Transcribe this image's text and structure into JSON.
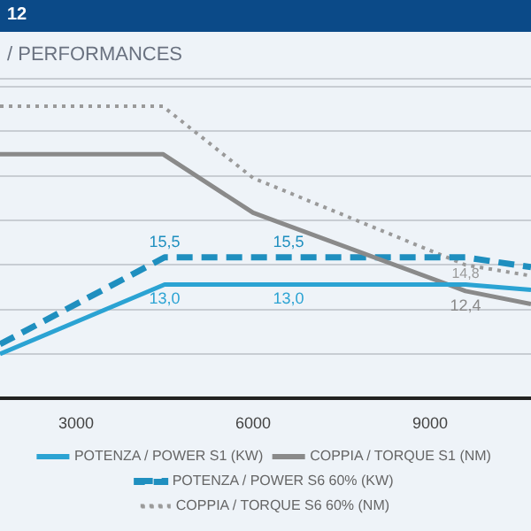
{
  "chart_data": {
    "type": "line",
    "title": "12",
    "subtitle": "/ PERFORMANCES",
    "xlim": [
      1710,
      10710
    ],
    "xticks": [
      3000,
      6000,
      9000
    ],
    "ylim": [
      2.5,
      31.2
    ],
    "yticks": [
      {
        "value": 6.6,
        "label": null
      },
      {
        "value": 10.7,
        "label": null
      },
      {
        "value": 14.8,
        "label": null
      },
      {
        "value": 18.9,
        "label": null
      },
      {
        "value": 23.0,
        "label": null
      },
      {
        "value": 27.1,
        "label": null
      },
      {
        "value": 31.2,
        "label": null
      }
    ],
    "tick_labels": "x",
    "grid": "y",
    "legend": "bottom",
    "marker": "none",
    "series": [
      {
        "name": "POTENZA / POWER S1 (KW)",
        "color": "#2ba3d3",
        "line_style": "solid",
        "x": [
          1710,
          4500,
          6600,
          9600,
          10710
        ],
        "values": [
          6.6,
          13.0,
          13.0,
          13.0,
          12.5
        ],
        "value_labels": [
          null,
          "13,0",
          "13,0",
          null,
          null
        ]
      },
      {
        "name": "COPPIA / TORQUE S1 (NM)",
        "color": "#8a8a8a",
        "line_style": "solid",
        "x": [
          1710,
          4470,
          6000,
          9600,
          10710
        ],
        "values": [
          25.0,
          25.0,
          19.6,
          12.4,
          11.2
        ],
        "value_labels": [
          null,
          null,
          null,
          "12,4",
          null
        ]
      },
      {
        "name": "POTENZA / POWER S6 60% (KW)",
        "color": "#1f8fbf",
        "line_style": "dashed",
        "x": [
          1710,
          4500,
          6600,
          9600,
          10710
        ],
        "values": [
          7.5,
          15.5,
          15.5,
          15.5,
          14.6
        ],
        "value_labels": [
          null,
          "15,5",
          "15,5",
          null,
          null
        ]
      },
      {
        "name": "COPPIA / TORQUE S6 60% (NM)",
        "color": "#9a9a9a",
        "line_style": "dotted",
        "x": [
          1710,
          4470,
          6000,
          9600,
          10710
        ],
        "values": [
          29.4,
          29.4,
          22.8,
          14.8,
          13.8
        ],
        "value_labels": [
          null,
          null,
          null,
          "14,8",
          null
        ]
      }
    ]
  }
}
